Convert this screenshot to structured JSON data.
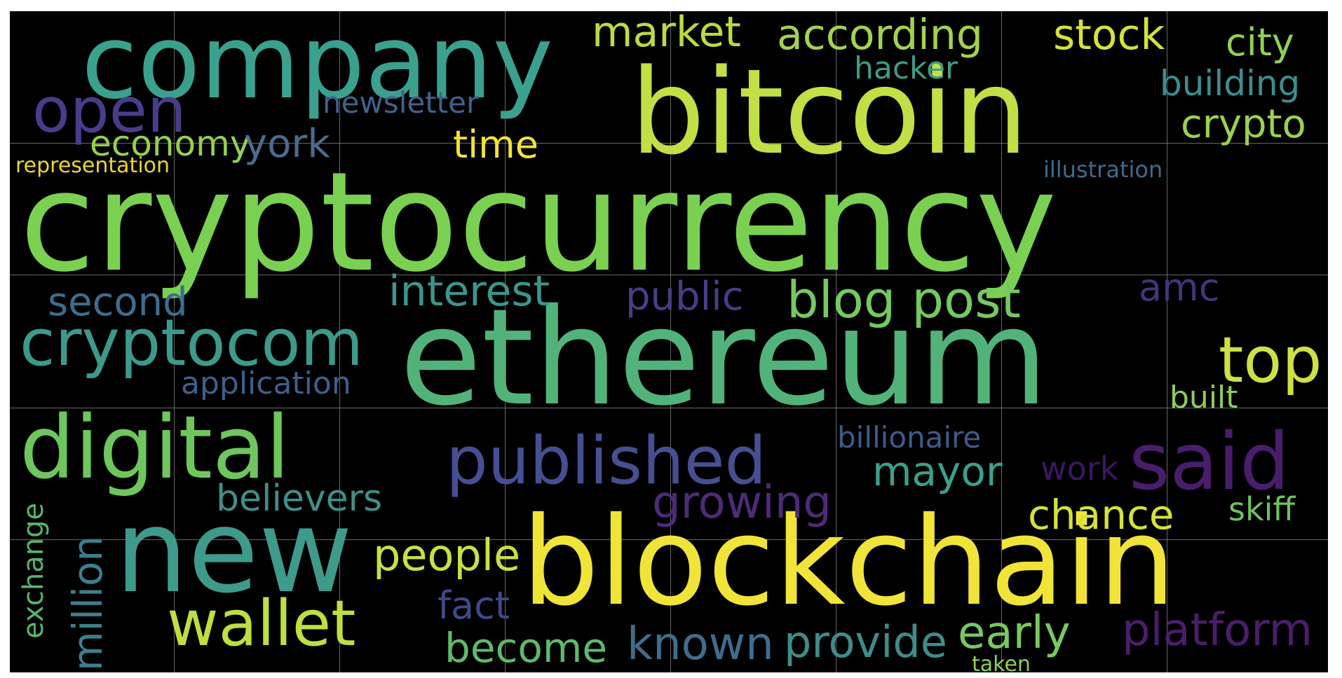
{
  "words": [
    {
      "text": "cryptocurrency",
      "color": "#7ad151"
    },
    {
      "text": "ethereum",
      "color": "#52b37a"
    },
    {
      "text": "blockchain",
      "color": "#f1e438"
    },
    {
      "text": "bitcoin",
      "color": "#c2df46"
    },
    {
      "text": "company",
      "color": "#3aa18f"
    },
    {
      "text": "new",
      "color": "#3e9b8b"
    },
    {
      "text": "digital",
      "color": "#6ec75c"
    },
    {
      "text": "published",
      "color": "#464f91"
    },
    {
      "text": "said",
      "color": "#4a1d6b"
    },
    {
      "text": "cryptocom",
      "color": "#3c9a8c"
    },
    {
      "text": "open",
      "color": "#483d8b"
    },
    {
      "text": "wallet",
      "color": "#bedf3f"
    },
    {
      "text": "top",
      "color": "#cde045"
    },
    {
      "text": "blog post",
      "color": "#75c960"
    },
    {
      "text": "market",
      "color": "#bbdb40"
    },
    {
      "text": "according",
      "color": "#a3d24f"
    },
    {
      "text": "stock",
      "color": "#d5e23a"
    },
    {
      "text": "city",
      "color": "#91d055"
    },
    {
      "text": "crypto",
      "color": "#9ad14e"
    },
    {
      "text": "building",
      "color": "#3d8d8f"
    },
    {
      "text": "hacker",
      "color": "#3f9b86"
    },
    {
      "text": "newsletter",
      "color": "#40628c"
    },
    {
      "text": "economy",
      "color": "#94d14f"
    },
    {
      "text": "york",
      "color": "#4b6c8b"
    },
    {
      "text": "time",
      "color": "#f2e236"
    },
    {
      "text": "representation",
      "color": "#ecd535"
    },
    {
      "text": "illustration",
      "color": "#3e6b8c"
    },
    {
      "text": "interest",
      "color": "#3a968d"
    },
    {
      "text": "public",
      "color": "#463e87"
    },
    {
      "text": "amc",
      "color": "#43357a"
    },
    {
      "text": "second",
      "color": "#3b6e8e"
    },
    {
      "text": "application",
      "color": "#3e5f8c"
    },
    {
      "text": "built",
      "color": "#8ecc5a"
    },
    {
      "text": "billionaire",
      "color": "#3e5b8a"
    },
    {
      "text": "mayor",
      "color": "#3aa08c"
    },
    {
      "text": "work",
      "color": "#3b1760"
    },
    {
      "text": "believers",
      "color": "#3e8f8a"
    },
    {
      "text": "growing",
      "color": "#4e2a78"
    },
    {
      "text": "chance",
      "color": "#d4e23a"
    },
    {
      "text": "skiff",
      "color": "#6fc35c"
    },
    {
      "text": "people",
      "color": "#c9e040"
    },
    {
      "text": "fact",
      "color": "#3e4a88"
    },
    {
      "text": "become",
      "color": "#5fba6b"
    },
    {
      "text": "known",
      "color": "#3e6e8e"
    },
    {
      "text": "provide",
      "color": "#3f8c8a"
    },
    {
      "text": "early",
      "color": "#78c95e"
    },
    {
      "text": "platform",
      "color": "#4a1e6a"
    },
    {
      "text": "taken",
      "color": "#8fd05a"
    },
    {
      "text": "exchange",
      "color": "#58b46c"
    },
    {
      "text": "million",
      "color": "#3e7e8d"
    }
  ]
}
